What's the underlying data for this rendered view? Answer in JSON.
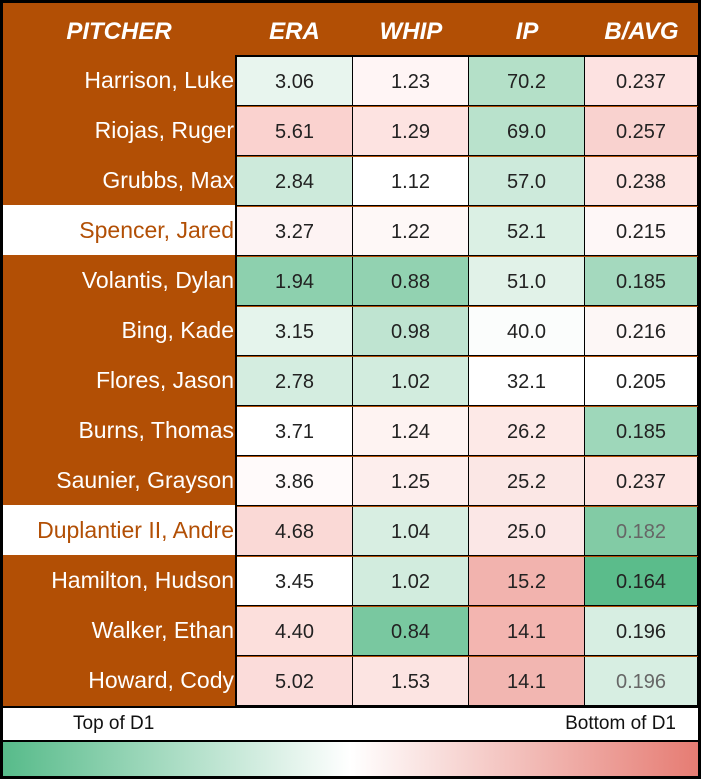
{
  "chart_data": {
    "type": "table",
    "columns": [
      "PITCHER",
      "ERA",
      "WHIP",
      "IP",
      "B/AVG"
    ],
    "rows": [
      {
        "pitcher": "Harrison, Luke",
        "era": "3.06",
        "whip": "1.23",
        "ip": "70.2",
        "bavg": "0.237",
        "highlight": false
      },
      {
        "pitcher": "Riojas, Ruger",
        "era": "5.61",
        "whip": "1.29",
        "ip": "69.0",
        "bavg": "0.257",
        "highlight": false
      },
      {
        "pitcher": "Grubbs, Max",
        "era": "2.84",
        "whip": "1.12",
        "ip": "57.0",
        "bavg": "0.238",
        "highlight": false
      },
      {
        "pitcher": "Spencer, Jared",
        "era": "3.27",
        "whip": "1.22",
        "ip": "52.1",
        "bavg": "0.215",
        "highlight": true
      },
      {
        "pitcher": "Volantis, Dylan",
        "era": "1.94",
        "whip": "0.88",
        "ip": "51.0",
        "bavg": "0.185",
        "highlight": false
      },
      {
        "pitcher": "Bing, Kade",
        "era": "3.15",
        "whip": "0.98",
        "ip": "40.0",
        "bavg": "0.216",
        "highlight": false
      },
      {
        "pitcher": "Flores, Jason",
        "era": "2.78",
        "whip": "1.02",
        "ip": "32.1",
        "bavg": "0.205",
        "highlight": false
      },
      {
        "pitcher": "Burns, Thomas",
        "era": "3.71",
        "whip": "1.24",
        "ip": "26.2",
        "bavg": "0.185",
        "highlight": false
      },
      {
        "pitcher": "Saunier, Grayson",
        "era": "3.86",
        "whip": "1.25",
        "ip": "25.2",
        "bavg": "0.237",
        "highlight": false
      },
      {
        "pitcher": "Duplantier II, Andre",
        "era": "4.68",
        "whip": "1.04",
        "ip": "25.0",
        "bavg": "0.182",
        "highlight": true
      },
      {
        "pitcher": "Hamilton, Hudson",
        "era": "3.45",
        "whip": "1.02",
        "ip": "15.2",
        "bavg": "0.164",
        "highlight": false
      },
      {
        "pitcher": "Walker, Ethan",
        "era": "4.40",
        "whip": "0.84",
        "ip": "14.1",
        "bavg": "0.196",
        "highlight": false
      },
      {
        "pitcher": "Howard, Cody",
        "era": "5.02",
        "whip": "1.53",
        "ip": "14.1",
        "bavg": "0.196",
        "highlight": false
      }
    ],
    "cell_colors": [
      [
        "#e8f5ee",
        "#fff5f5",
        "#b4e0c8",
        "#fde2e1"
      ],
      [
        "#fad2cf",
        "#fde3e1",
        "#b9e2cc",
        "#f9d2cf"
      ],
      [
        "#cdeadb",
        "#ffffff",
        "#cdeadb",
        "#fde4e2"
      ],
      [
        "#fdf3f3",
        "#fef8f7",
        "#dbf0e4",
        "#fef7f7"
      ],
      [
        "#8dd0ae",
        "#92d2b1",
        "#e1f2e8",
        "#a4d9be"
      ],
      [
        "#e5f4ec",
        "#bfe4d1",
        "#fbfdfc",
        "#fdf7f6"
      ],
      [
        "#d4ede0",
        "#d2ecde",
        "#ffffff",
        "#ffffff"
      ],
      [
        "#ffffff",
        "#fef3f2",
        "#fde9e7",
        "#9ed7ba"
      ],
      [
        "#fffafa",
        "#fdeeed",
        "#fbe7e5",
        "#fde4e2"
      ],
      [
        "#fad9d6",
        "#d8eee2",
        "#fbe7e6",
        "#82cba5"
      ],
      [
        "#ffffff",
        "#d2ecde",
        "#f2b3ae",
        "#5bbc8b"
      ],
      [
        "#fcdfdc",
        "#79c8a0",
        "#f3b5b0",
        "#d7eee2"
      ],
      [
        "#fbdcda",
        "#fce4e2",
        "#f2b6b1",
        "#d7eee2"
      ]
    ],
    "dim_values": [
      [
        9,
        3
      ],
      [
        12,
        3
      ]
    ],
    "legend": {
      "left": "Top of D1",
      "right": "Bottom of D1"
    },
    "scale_colors": {
      "good": "#57bb8a",
      "mid": "#ffffff",
      "bad": "#e67c73"
    },
    "accent": "#b24f05"
  }
}
